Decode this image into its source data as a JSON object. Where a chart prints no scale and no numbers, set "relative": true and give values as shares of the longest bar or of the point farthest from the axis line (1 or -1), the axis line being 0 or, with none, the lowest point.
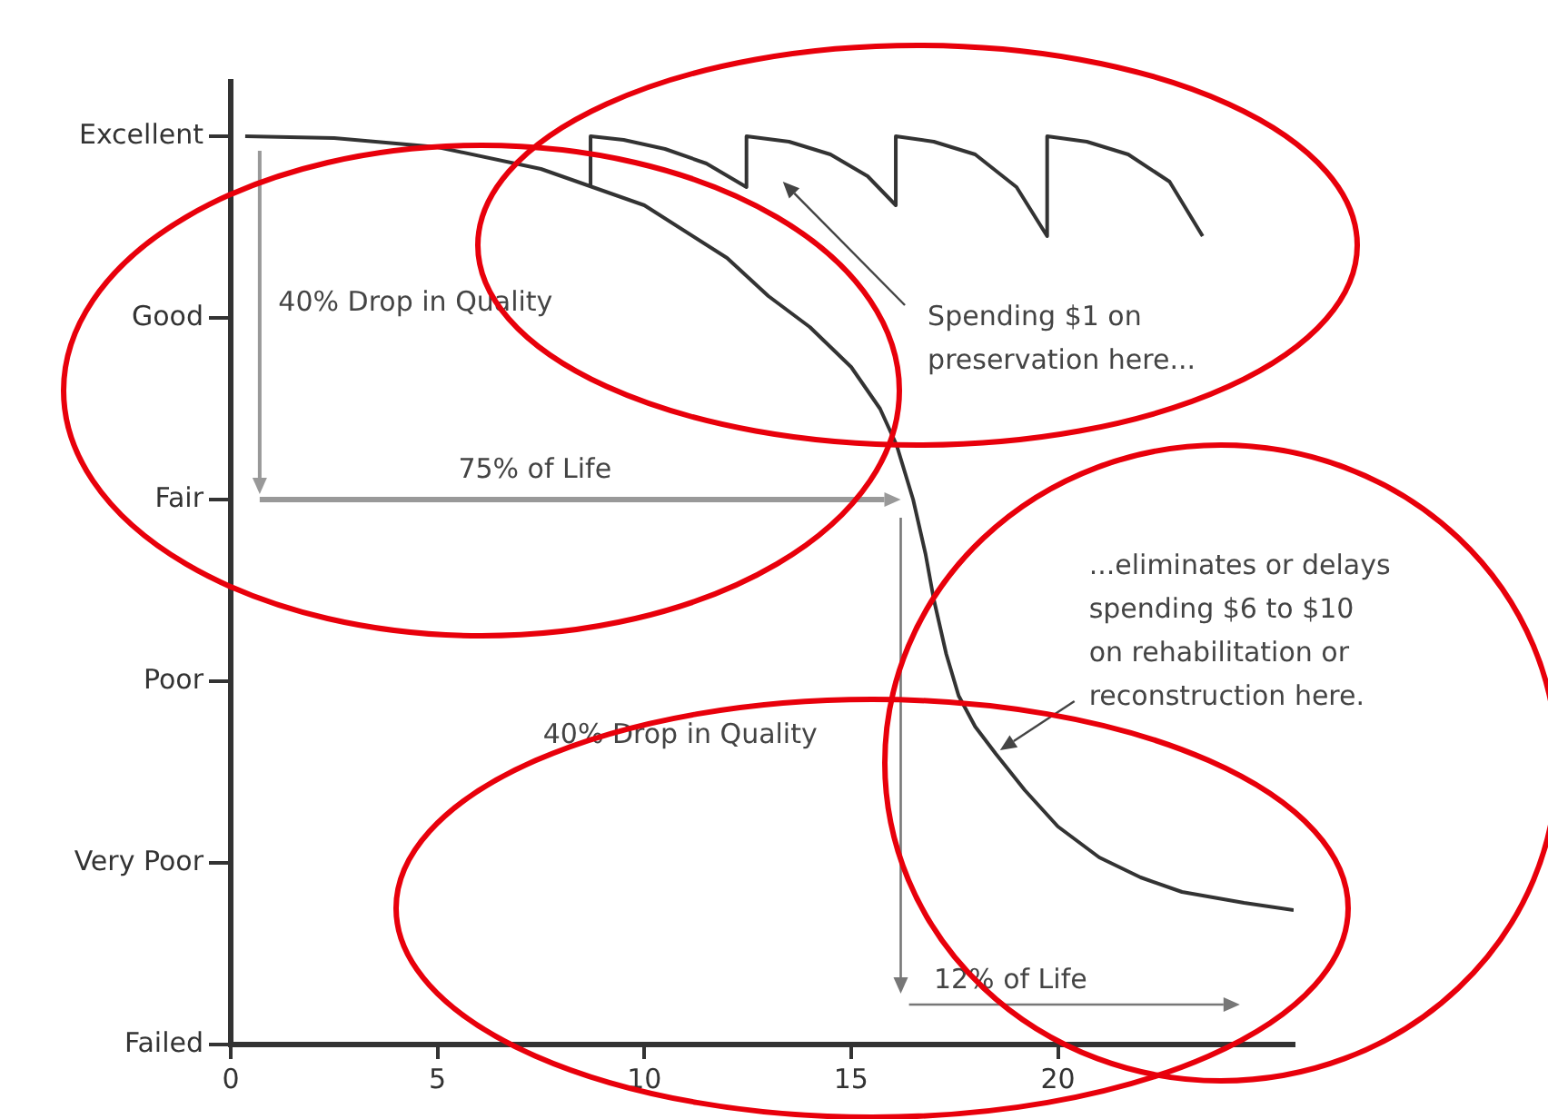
{
  "chart_data": {
    "type": "line",
    "relative": true,
    "xlim": [
      0,
      25.7
    ],
    "xticks": [
      0,
      5,
      10,
      15,
      20
    ],
    "y_categories": [
      "Excellent",
      "Good",
      "Fair",
      "Poor",
      "Very Poor",
      "Failed"
    ],
    "grid": false,
    "legend": false,
    "marker": "none",
    "line_style": "solid",
    "series": [
      {
        "color": "#333333",
        "x": [
          0.35,
          2.5,
          5,
          7.5,
          10,
          12,
          13,
          14,
          15,
          15.7,
          16.1,
          16.5,
          16.8,
          17,
          17.3,
          17.6,
          18,
          18.5,
          19.2,
          20,
          21,
          22,
          23,
          24.5,
          25.7
        ],
        "values": [
          1,
          0.998,
          0.988,
          0.964,
          0.924,
          0.866,
          0.824,
          0.79,
          0.746,
          0.7,
          0.66,
          0.6,
          0.54,
          0.49,
          0.43,
          0.384,
          0.35,
          0.32,
          0.28,
          0.24,
          0.206,
          0.184,
          0.168,
          0.156,
          0.148
        ]
      },
      {
        "color": "#333333",
        "x": [
          8.7,
          8.7,
          9.5,
          10.5,
          11.5,
          12.47,
          12.47,
          13.5,
          14.5,
          15.4,
          16.08,
          16.08,
          17,
          18,
          19,
          19.74,
          19.74,
          20.7,
          21.7,
          22.7,
          23.5
        ],
        "values": [
          0.944,
          1,
          0.996,
          0.986,
          0.97,
          0.944,
          1,
          0.994,
          0.98,
          0.956,
          0.924,
          1,
          0.994,
          0.98,
          0.944,
          0.89,
          1,
          0.994,
          0.98,
          0.95,
          0.89
        ]
      }
    ],
    "annotations": [
      "40% Drop in Quality",
      "75% of Life",
      "Spending $1 on\npreservation here...",
      "...eliminates or delays\nspending $6 to $10\non rehabilitation or\nreconstruction here.",
      "40% Drop in Quality",
      "12% of Life"
    ]
  }
}
